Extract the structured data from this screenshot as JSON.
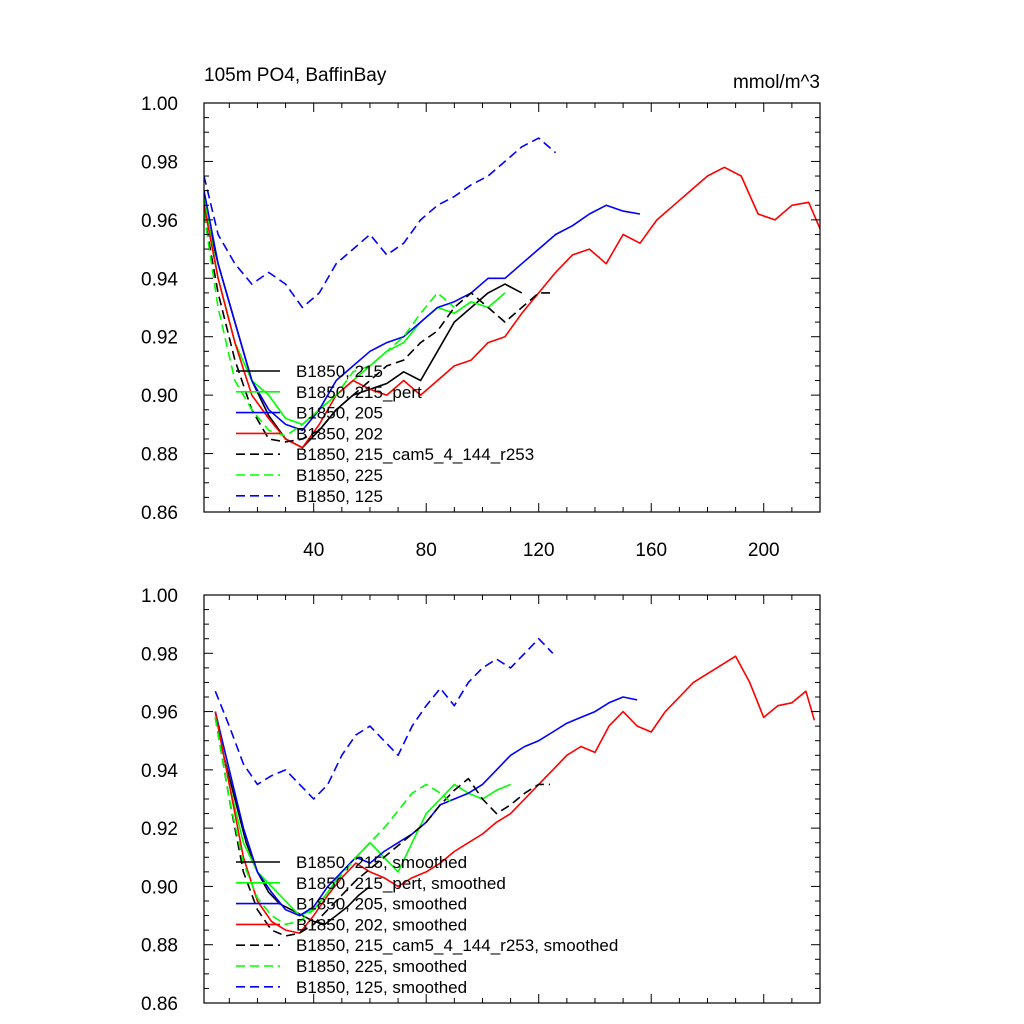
{
  "chart_data": [
    {
      "type": "line",
      "title": "105m PO4, BaffinBay",
      "units": "mmol/m^3",
      "xlim": [
        1,
        220
      ],
      "ylim": [
        0.86,
        1.0
      ],
      "xticks": [
        40,
        80,
        120,
        160,
        200
      ],
      "xtick_labels": [
        "40",
        "80",
        "120",
        "160",
        "200"
      ],
      "yticks": [
        0.86,
        0.88,
        0.9,
        0.92,
        0.94,
        0.96,
        0.98,
        1.0
      ],
      "ytick_labels": [
        "0.86",
        "0.88",
        "0.90",
        "0.92",
        "0.94",
        "0.96",
        "0.98",
        "1.00"
      ],
      "legend_position": "lower-left",
      "series": [
        {
          "name": "B1850, 215",
          "color": "#000000",
          "dash": "solid",
          "x": [
            1,
            6,
            12,
            18,
            24,
            30,
            36,
            42,
            48,
            54,
            60,
            66,
            72,
            78,
            84,
            90,
            96,
            102,
            108,
            114
          ],
          "values": [
            0.965,
            0.945,
            0.925,
            0.905,
            0.893,
            0.885,
            0.882,
            0.888,
            0.895,
            0.9,
            0.902,
            0.904,
            0.908,
            0.905,
            0.915,
            0.925,
            0.93,
            0.935,
            0.938,
            0.935
          ]
        },
        {
          "name": "B1850, 215_pert",
          "color": "#00ff00",
          "dash": "solid",
          "x": [
            1,
            6,
            12,
            18,
            24,
            30,
            36,
            42,
            48,
            54,
            60,
            66,
            72,
            78,
            84,
            90,
            96,
            102,
            108
          ],
          "values": [
            0.968,
            0.94,
            0.918,
            0.905,
            0.9,
            0.892,
            0.89,
            0.895,
            0.9,
            0.905,
            0.91,
            0.915,
            0.918,
            0.925,
            0.93,
            0.928,
            0.932,
            0.93,
            0.935
          ]
        },
        {
          "name": "B1850, 205",
          "color": "#0000ff",
          "dash": "solid",
          "x": [
            1,
            6,
            12,
            18,
            24,
            30,
            36,
            42,
            48,
            54,
            60,
            66,
            72,
            78,
            84,
            90,
            96,
            102,
            108,
            114,
            120,
            126,
            132,
            138,
            144,
            150,
            156
          ],
          "values": [
            0.97,
            0.945,
            0.925,
            0.905,
            0.895,
            0.89,
            0.888,
            0.895,
            0.905,
            0.91,
            0.915,
            0.918,
            0.92,
            0.925,
            0.93,
            0.932,
            0.935,
            0.94,
            0.94,
            0.945,
            0.95,
            0.955,
            0.958,
            0.962,
            0.965,
            0.963,
            0.962
          ]
        },
        {
          "name": "B1850, 202",
          "color": "#ff0000",
          "dash": "solid",
          "x": [
            1,
            6,
            12,
            18,
            24,
            30,
            36,
            42,
            48,
            54,
            60,
            66,
            72,
            78,
            84,
            90,
            96,
            102,
            108,
            114,
            120,
            126,
            132,
            138,
            144,
            150,
            156,
            162,
            168,
            174,
            180,
            186,
            192,
            198,
            204,
            210,
            216,
            220
          ],
          "values": [
            0.965,
            0.94,
            0.918,
            0.9,
            0.892,
            0.885,
            0.882,
            0.89,
            0.9,
            0.905,
            0.902,
            0.9,
            0.905,
            0.9,
            0.905,
            0.91,
            0.912,
            0.918,
            0.92,
            0.928,
            0.935,
            0.942,
            0.948,
            0.95,
            0.945,
            0.955,
            0.952,
            0.96,
            0.965,
            0.97,
            0.975,
            0.978,
            0.975,
            0.962,
            0.96,
            0.965,
            0.966,
            0.957
          ]
        },
        {
          "name": "B1850, 215_cam5_4_144_r253",
          "color": "#000000",
          "dash": "dashed",
          "x": [
            1,
            6,
            12,
            18,
            24,
            30,
            36,
            42,
            48,
            54,
            60,
            66,
            72,
            78,
            84,
            90,
            96,
            102,
            108,
            114,
            120,
            124
          ],
          "values": [
            0.962,
            0.935,
            0.912,
            0.895,
            0.885,
            0.884,
            0.885,
            0.888,
            0.895,
            0.9,
            0.905,
            0.91,
            0.912,
            0.918,
            0.922,
            0.93,
            0.935,
            0.93,
            0.925,
            0.93,
            0.935,
            0.935
          ]
        },
        {
          "name": "B1850, 225",
          "color": "#00ff00",
          "dash": "dashed",
          "x": [
            1,
            6,
            12,
            18,
            24,
            30,
            36,
            42,
            48,
            54,
            60,
            66,
            72,
            78,
            84,
            90
          ],
          "values": [
            0.962,
            0.93,
            0.905,
            0.895,
            0.888,
            0.886,
            0.89,
            0.895,
            0.9,
            0.908,
            0.91,
            0.915,
            0.92,
            0.928,
            0.935,
            0.93
          ]
        },
        {
          "name": "B1850, 125",
          "color": "#0000ff",
          "dash": "dashed",
          "x": [
            1,
            6,
            12,
            18,
            24,
            30,
            36,
            42,
            48,
            54,
            60,
            66,
            72,
            78,
            84,
            90,
            96,
            102,
            108,
            114,
            120,
            126
          ],
          "values": [
            0.975,
            0.955,
            0.945,
            0.938,
            0.942,
            0.938,
            0.93,
            0.935,
            0.945,
            0.95,
            0.955,
            0.948,
            0.952,
            0.96,
            0.965,
            0.968,
            0.972,
            0.975,
            0.98,
            0.985,
            0.988,
            0.983
          ]
        }
      ]
    },
    {
      "type": "line",
      "title": "",
      "xlim": [
        1,
        220
      ],
      "ylim": [
        0.86,
        1.0
      ],
      "xticks": [
        40,
        80,
        120,
        160,
        200
      ],
      "yticks": [
        0.86,
        0.88,
        0.9,
        0.92,
        0.94,
        0.96,
        0.98,
        1.0
      ],
      "ytick_labels": [
        "0.86",
        "0.88",
        "0.90",
        "0.92",
        "0.94",
        "0.96",
        "0.98",
        "1.00"
      ],
      "legend_position": "lower-left",
      "series": [
        {
          "name": "B1850, 215, smoothed",
          "color": "#000000",
          "dash": "solid",
          "x": [
            5,
            8,
            12,
            16,
            20,
            24,
            28,
            32,
            36,
            40,
            44,
            48,
            52,
            56,
            60
          ],
          "values": [
            0.96,
            0.945,
            0.93,
            0.915,
            0.905,
            0.898,
            0.894,
            0.892,
            0.89,
            0.888,
            0.887,
            0.89,
            0.893,
            0.897,
            0.9
          ]
        },
        {
          "name": "B1850, 215_pert, smoothed",
          "color": "#00ff00",
          "dash": "solid",
          "x": [
            5,
            10,
            15,
            20,
            25,
            30,
            35,
            40,
            45,
            50,
            55,
            60,
            65,
            70,
            75,
            80,
            85,
            90,
            95,
            100,
            105,
            110
          ],
          "values": [
            0.96,
            0.935,
            0.915,
            0.905,
            0.9,
            0.895,
            0.89,
            0.892,
            0.898,
            0.905,
            0.91,
            0.915,
            0.91,
            0.905,
            0.915,
            0.925,
            0.93,
            0.935,
            0.932,
            0.93,
            0.933,
            0.935
          ]
        },
        {
          "name": "B1850, 205, smoothed",
          "color": "#0000ff",
          "dash": "solid",
          "x": [
            5,
            10,
            15,
            20,
            25,
            30,
            35,
            40,
            45,
            50,
            55,
            60,
            65,
            70,
            75,
            80,
            85,
            90,
            95,
            100,
            105,
            110,
            115,
            120,
            125,
            130,
            135,
            140,
            145,
            150,
            155
          ],
          "values": [
            0.96,
            0.94,
            0.92,
            0.905,
            0.898,
            0.892,
            0.89,
            0.893,
            0.9,
            0.905,
            0.91,
            0.908,
            0.912,
            0.915,
            0.918,
            0.922,
            0.928,
            0.93,
            0.932,
            0.935,
            0.94,
            0.945,
            0.948,
            0.95,
            0.953,
            0.956,
            0.958,
            0.96,
            0.963,
            0.965,
            0.964
          ]
        },
        {
          "name": "B1850, 202, smoothed",
          "color": "#ff0000",
          "dash": "solid",
          "x": [
            5,
            10,
            15,
            20,
            25,
            30,
            35,
            40,
            45,
            50,
            55,
            60,
            65,
            70,
            75,
            80,
            85,
            90,
            95,
            100,
            105,
            110,
            115,
            120,
            125,
            130,
            135,
            140,
            145,
            150,
            155,
            160,
            165,
            170,
            175,
            180,
            185,
            190,
            195,
            200,
            205,
            210,
            215,
            218
          ],
          "values": [
            0.96,
            0.935,
            0.91,
            0.895,
            0.888,
            0.885,
            0.884,
            0.89,
            0.897,
            0.903,
            0.908,
            0.905,
            0.903,
            0.9,
            0.903,
            0.905,
            0.908,
            0.912,
            0.915,
            0.918,
            0.922,
            0.925,
            0.93,
            0.935,
            0.94,
            0.945,
            0.948,
            0.946,
            0.955,
            0.96,
            0.955,
            0.953,
            0.96,
            0.965,
            0.97,
            0.973,
            0.976,
            0.979,
            0.97,
            0.958,
            0.962,
            0.963,
            0.967,
            0.957
          ]
        },
        {
          "name": "B1850, 215_cam5_4_144_r253, smoothed",
          "color": "#000000",
          "dash": "dashed",
          "x": [
            5,
            10,
            15,
            20,
            25,
            30,
            35,
            40,
            45,
            50,
            55,
            60,
            65,
            70,
            75,
            80,
            85,
            90,
            95,
            100,
            105,
            110,
            115,
            120,
            124
          ],
          "values": [
            0.958,
            0.93,
            0.905,
            0.892,
            0.885,
            0.883,
            0.884,
            0.887,
            0.892,
            0.897,
            0.902,
            0.906,
            0.91,
            0.914,
            0.918,
            0.922,
            0.928,
            0.933,
            0.937,
            0.93,
            0.925,
            0.928,
            0.932,
            0.935,
            0.935
          ]
        },
        {
          "name": "B1850, 225, smoothed",
          "color": "#00ff00",
          "dash": "dashed",
          "x": [
            5,
            10,
            15,
            20,
            25,
            30,
            35,
            40,
            45,
            50,
            55,
            60,
            65,
            70,
            75,
            80,
            85,
            90
          ],
          "values": [
            0.958,
            0.93,
            0.908,
            0.896,
            0.89,
            0.887,
            0.888,
            0.892,
            0.898,
            0.904,
            0.91,
            0.915,
            0.92,
            0.926,
            0.932,
            0.935,
            0.932,
            0.928
          ]
        },
        {
          "name": "B1850, 125, smoothed",
          "color": "#0000ff",
          "dash": "dashed",
          "x": [
            5,
            10,
            15,
            20,
            25,
            30,
            35,
            40,
            45,
            50,
            55,
            60,
            65,
            70,
            75,
            80,
            85,
            90,
            95,
            100,
            105,
            110,
            115,
            120,
            125
          ],
          "values": [
            0.967,
            0.955,
            0.942,
            0.935,
            0.938,
            0.94,
            0.935,
            0.93,
            0.935,
            0.945,
            0.952,
            0.955,
            0.95,
            0.945,
            0.955,
            0.962,
            0.968,
            0.962,
            0.97,
            0.975,
            0.978,
            0.975,
            0.98,
            0.985,
            0.98
          ]
        }
      ]
    }
  ]
}
